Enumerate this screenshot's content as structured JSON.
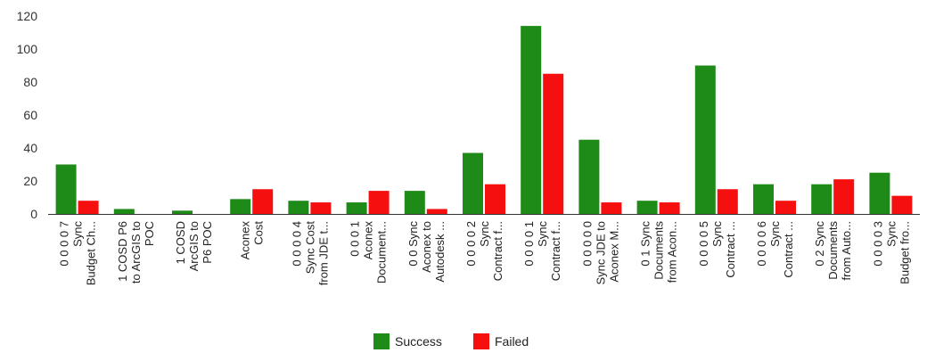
{
  "chart_data": {
    "type": "bar",
    "categories": [
      [
        "0 0 0 0 7",
        "Sync",
        "Budget Ch..."
      ],
      [
        "1 COSD P6",
        "to ArcGIS to",
        "POC"
      ],
      [
        "1 COSD",
        "ArcGIS to",
        "P6 POC"
      ],
      [
        "Aconex",
        "Cost"
      ],
      [
        "0 0 0 0 4",
        "Sync Cost",
        "from JDE t..."
      ],
      [
        "0 0 0 1",
        "Aconex",
        "Document..."
      ],
      [
        "0 0 Sync",
        "Aconex to",
        "Autodesk ..."
      ],
      [
        "0 0 0 0 2",
        "Sync",
        "Contract f..."
      ],
      [
        "0 0 0 0 1",
        "Sync",
        "Contract f..."
      ],
      [
        "0 0 0 0 0",
        "Sync JDE to",
        "Aconex M..."
      ],
      [
        "0 1 Sync",
        "Documents",
        "from Acon..."
      ],
      [
        "0 0 0 0 5",
        "Sync",
        "Contract ..."
      ],
      [
        "0 0 0 0 6",
        "Sync",
        "Contract ..."
      ],
      [
        "0 2 Sync",
        "Documents",
        "from Auto..."
      ],
      [
        "0 0 0 0 3",
        "Sync",
        "Budget fro..."
      ]
    ],
    "series": [
      {
        "name": "Success",
        "color": "#1e8a17",
        "values": [
          30,
          3,
          2,
          9,
          8,
          7,
          14,
          37,
          114,
          45,
          8,
          90,
          18,
          18,
          25
        ]
      },
      {
        "name": "Failed",
        "color": "#f50f0f",
        "values": [
          8,
          0,
          0,
          15,
          7,
          14,
          3,
          18,
          85,
          7,
          7,
          15,
          8,
          21,
          11
        ]
      }
    ],
    "yticks": [
      "0",
      "20",
      "40",
      "60",
      "80",
      "100",
      "120"
    ],
    "ylim": [
      0,
      120
    ],
    "grid": false,
    "legend_position": "bottom-center"
  }
}
